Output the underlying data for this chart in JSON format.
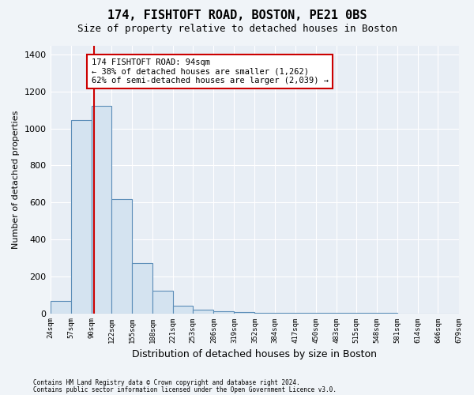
{
  "title": "174, FISHTOFT ROAD, BOSTON, PE21 0BS",
  "subtitle": "Size of property relative to detached houses in Boston",
  "xlabel": "Distribution of detached houses by size in Boston",
  "ylabel": "Number of detached properties",
  "footnote1": "Contains HM Land Registry data © Crown copyright and database right 2024.",
  "footnote2": "Contains public sector information licensed under the Open Government Licence v3.0.",
  "bin_edges": [
    24,
    57,
    90,
    122,
    155,
    188,
    221,
    253,
    286,
    319,
    352,
    384,
    417,
    450,
    483,
    515,
    548,
    581,
    614,
    646,
    679
  ],
  "bar_heights": [
    65,
    1047,
    1122,
    620,
    270,
    120,
    42,
    18,
    12,
    5,
    3,
    2,
    2,
    1,
    1,
    1,
    1,
    0,
    0,
    0
  ],
  "bar_color": "#d4e3f0",
  "bar_edgecolor": "#5b8db8",
  "property_size": 94,
  "vline_color": "#cc0000",
  "annotation_line1": "174 FISHTOFT ROAD: 94sqm",
  "annotation_line2": "← 38% of detached houses are smaller (1,262)",
  "annotation_line3": "62% of semi-detached houses are larger (2,039) →",
  "annotation_box_edgecolor": "#cc0000",
  "annotation_facecolor": "white",
  "ylim": [
    0,
    1450
  ],
  "yticks": [
    0,
    200,
    400,
    600,
    800,
    1000,
    1200,
    1400
  ],
  "grid_color": "white",
  "background_color": "#f0f4f8",
  "plot_background": "#e8eef5",
  "title_fontsize": 11,
  "subtitle_fontsize": 9,
  "tick_labels": [
    "24sqm",
    "57sqm",
    "90sqm",
    "122sqm",
    "155sqm",
    "188sqm",
    "221sqm",
    "253sqm",
    "286sqm",
    "319sqm",
    "352sqm",
    "384sqm",
    "417sqm",
    "450sqm",
    "483sqm",
    "515sqm",
    "548sqm",
    "581sqm",
    "614sqm",
    "646sqm",
    "679sqm"
  ]
}
